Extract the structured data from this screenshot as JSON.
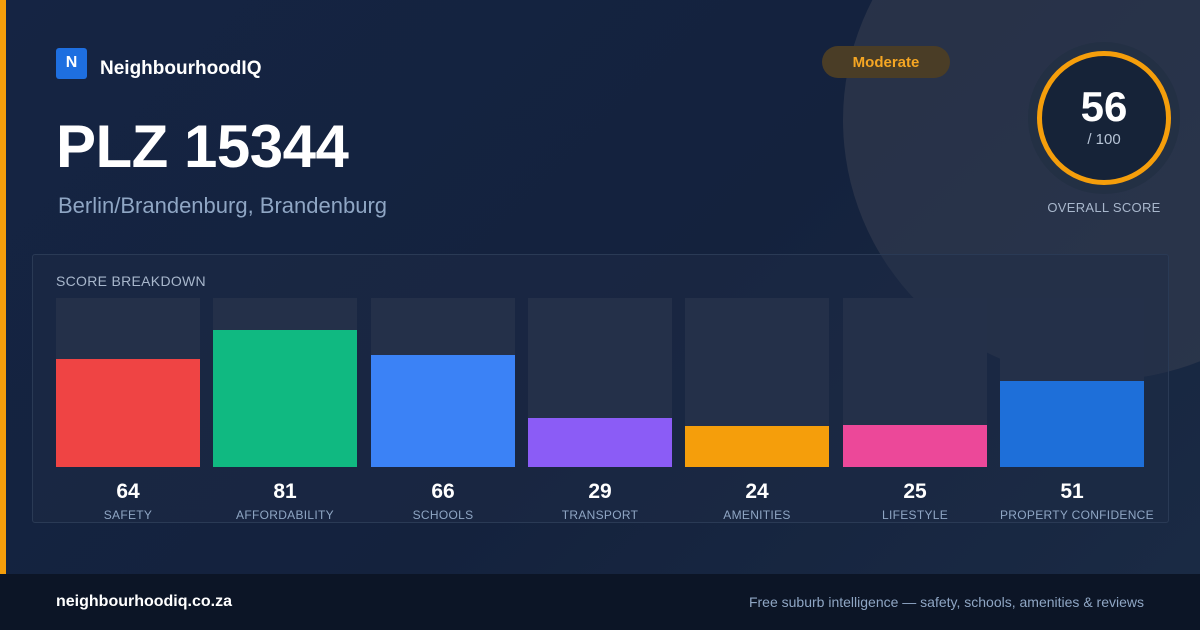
{
  "brand": {
    "logo_letter": "N",
    "name": "NeighbourhoodIQ"
  },
  "badge": {
    "label": "Moderate"
  },
  "title": "PLZ 15344",
  "subtitle": "Berlin/Brandenburg, Brandenburg",
  "overall": {
    "value": "56",
    "max": "/ 100",
    "caption": "OVERALL SCORE"
  },
  "breakdown": {
    "title": "SCORE BREAKDOWN",
    "items": [
      {
        "value": "64",
        "label": "SAFETY",
        "color": "#ef4444"
      },
      {
        "value": "81",
        "label": "AFFORDABILITY",
        "color": "#10b981"
      },
      {
        "value": "66",
        "label": "SCHOOLS",
        "color": "#3b82f6"
      },
      {
        "value": "29",
        "label": "TRANSPORT",
        "color": "#8b5cf6"
      },
      {
        "value": "24",
        "label": "AMENITIES",
        "color": "#f59e0b"
      },
      {
        "value": "25",
        "label": "LIFESTYLE",
        "color": "#ec4899"
      },
      {
        "value": "51",
        "label": "PROPERTY CONFIDENCE",
        "color": "#1e6fd9"
      }
    ]
  },
  "footer": {
    "url": "neighbourhoodiq.co.za",
    "tagline": "Free suburb intelligence — safety, schools, amenities & reviews"
  },
  "colors": {
    "accent": "#f59e0b",
    "brand": "#1e6fe0",
    "background": "#14223d"
  }
}
